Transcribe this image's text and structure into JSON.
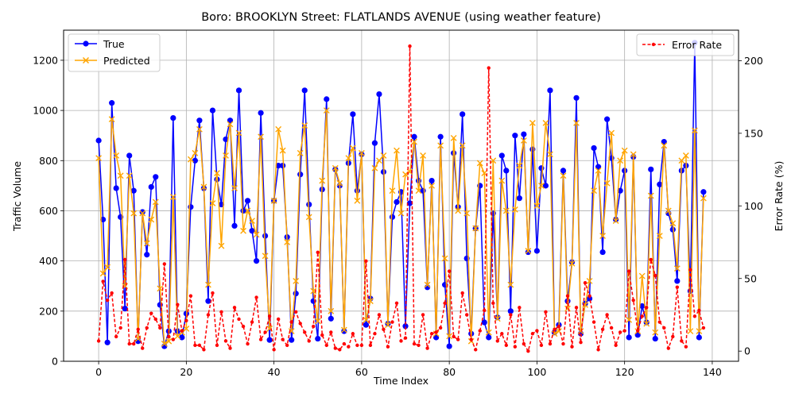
{
  "chart_data": {
    "type": "line",
    "title": "Boro: BROOKLYN Street: FLATLANDS AVENUE (using weather feature)",
    "xlabel": "Time Index",
    "ylabel_left": "Traffic Volume",
    "ylabel_right": "Error Rate (%)",
    "xlim": [
      -8,
      146
    ],
    "ylim_left": [
      0,
      1320
    ],
    "ylim_right": [
      -7,
      221
    ],
    "xticks": [
      0,
      20,
      40,
      60,
      80,
      100,
      120,
      140
    ],
    "yticks_left": [
      0,
      200,
      400,
      600,
      800,
      1000,
      1200
    ],
    "yticks_right": [
      0,
      50,
      100,
      150,
      200
    ],
    "grid": true,
    "legend_left": "upper-left",
    "legend_right": "upper-right",
    "colors": {
      "true": "#0000ff",
      "predicted": "#ffa500",
      "error": "#ff0000",
      "grid": "#b0b0b0"
    },
    "series": [
      {
        "name": "True",
        "axis": "left",
        "values": [
          880,
          565,
          75,
          1030,
          690,
          575,
          210,
          820,
          680,
          80,
          595,
          425,
          695,
          735,
          225,
          60,
          120,
          970,
          120,
          95,
          190,
          615,
          800,
          960,
          690,
          240,
          1000,
          725,
          625,
          885,
          960,
          540,
          1080,
          600,
          640,
          520,
          400,
          990,
          500,
          85,
          640,
          780,
          780,
          495,
          85,
          270,
          745,
          1080,
          625,
          240,
          90,
          685,
          1045,
          170,
          765,
          700,
          120,
          790,
          985,
          680,
          825,
          145,
          250,
          870,
          1065,
          755,
          150,
          575,
          635,
          675,
          140,
          630,
          895,
          720,
          680,
          295,
          720,
          95,
          895,
          305,
          60,
          830,
          615,
          985,
          410,
          110,
          530,
          700,
          155,
          95,
          590,
          175,
          820,
          760,
          200,
          900,
          650,
          905,
          435,
          845,
          440,
          770,
          700,
          1080,
          115,
          145,
          760,
          240,
          395,
          1050,
          110,
          230,
          250,
          850,
          775,
          435,
          965,
          810,
          565,
          680,
          760,
          95,
          815,
          105,
          220,
          155,
          765,
          90,
          705,
          875,
          590,
          525,
          320,
          760,
          780,
          280,
          1270,
          95,
          675
        ]
      },
      {
        "name": "Predicted",
        "axis": "left",
        "values": [
          810,
          350,
          375,
          965,
          820,
          740,
          300,
          740,
          590,
          90,
          590,
          470,
          565,
          635,
          290,
          70,
          80,
          655,
          100,
          115,
          130,
          805,
          830,
          925,
          695,
          305,
          630,
          750,
          460,
          820,
          945,
          690,
          910,
          520,
          600,
          560,
          505,
          895,
          420,
          130,
          640,
          925,
          840,
          475,
          120,
          320,
          830,
          940,
          575,
          280,
          160,
          720,
          1000,
          200,
          770,
          710,
          125,
          810,
          850,
          640,
          830,
          165,
          240,
          770,
          800,
          820,
          145,
          680,
          840,
          590,
          745,
          755,
          875,
          680,
          820,
          305,
          700,
          110,
          860,
          410,
          100,
          890,
          600,
          860,
          590,
          80,
          530,
          790,
          750,
          115,
          800,
          170,
          720,
          600,
          305,
          605,
          780,
          880,
          440,
          950,
          620,
          700,
          950,
          825,
          110,
          120,
          740,
          210,
          390,
          950,
          120,
          225,
          320,
          680,
          760,
          500,
          710,
          910,
          560,
          800,
          840,
          165,
          825,
          120,
          340,
          150,
          660,
          115,
          500,
          860,
          600,
          550,
          370,
          800,
          820,
          120,
          920,
          120,
          650
        ]
      },
      {
        "name": "Error Rate",
        "axis": "right",
        "values": [
          7,
          48,
          35,
          40,
          10,
          16,
          63,
          5,
          5,
          15,
          2,
          16,
          26,
          22,
          16,
          60,
          10,
          8,
          32,
          14,
          21,
          38,
          4,
          4,
          1,
          25,
          40,
          4,
          27,
          7,
          2,
          30,
          22,
          17,
          5,
          20,
          37,
          8,
          13,
          24,
          1,
          22,
          8,
          4,
          20,
          27,
          19,
          13,
          7,
          17,
          68,
          11,
          4,
          13,
          2,
          1,
          5,
          3,
          12,
          4,
          4,
          62,
          4,
          12,
          25,
          15,
          3,
          20,
          33,
          7,
          9,
          210,
          5,
          4,
          25,
          2,
          12,
          13,
          16,
          33,
          55,
          10,
          8,
          40,
          25,
          8,
          1,
          14,
          28,
          195,
          33,
          7,
          12,
          4,
          25,
          3,
          30,
          5,
          0,
          12,
          14,
          4,
          27,
          5,
          15,
          17,
          5,
          38,
          3,
          30,
          6,
          47,
          38,
          20,
          1,
          15,
          25,
          16,
          4,
          13,
          14,
          55,
          35,
          14,
          24,
          30,
          63,
          52,
          20,
          16,
          2,
          10,
          44,
          7,
          3,
          56,
          24,
          28,
          16
        ]
      }
    ]
  }
}
